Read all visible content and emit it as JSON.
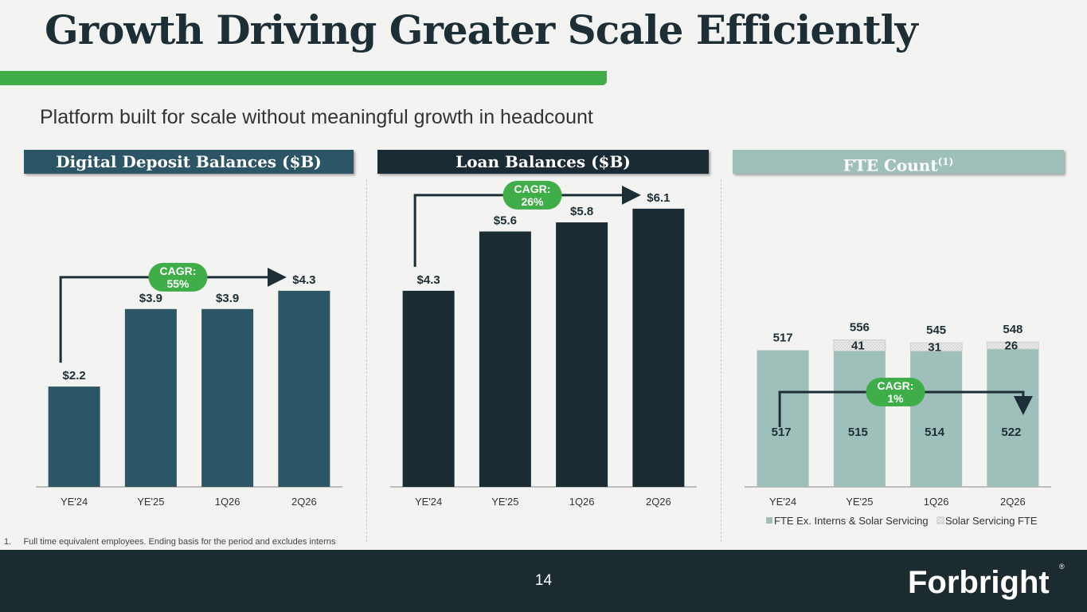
{
  "slide": {
    "title": "Growth Driving Greater Scale Efficiently",
    "subtitle": "Platform built for scale without meaningful growth in headcount",
    "footnote": "1.     Full time equivalent employees. Ending basis for the period and excludes interns",
    "page_number": "14",
    "logo_text": "Forbright",
    "logo_mark": "®"
  },
  "colors": {
    "green": "#3fae49",
    "deposit": "#2c5566",
    "loan": "#1b2b33",
    "fte": "#9fbfbb",
    "solar": "#e4e4e4"
  },
  "headers": [
    {
      "label": "Digital Deposit Balances ($B)",
      "sup": ""
    },
    {
      "label": "Loan Balances ($B)",
      "sup": ""
    },
    {
      "label": "FTE Count",
      "sup": "(1)"
    }
  ],
  "chart_data": [
    {
      "type": "bar",
      "title": "Digital Deposit Balances ($B)",
      "categories": [
        "YE'24",
        "YE'25",
        "1Q26",
        "2Q26"
      ],
      "values": [
        2.2,
        3.9,
        3.9,
        4.3
      ],
      "data_labels": [
        "$2.2",
        "$3.9",
        "$3.9",
        "$4.3"
      ],
      "annotation": {
        "line1": "CAGR:",
        "line2": "55%"
      },
      "ylim": [
        0,
        6.5
      ],
      "grid": false
    },
    {
      "type": "bar",
      "title": "Loan Balances ($B)",
      "categories": [
        "YE'24",
        "YE'25",
        "1Q26",
        "2Q26"
      ],
      "values": [
        4.3,
        5.6,
        5.8,
        6.1
      ],
      "data_labels": [
        "$4.3",
        "$5.6",
        "$5.8",
        "$6.1"
      ],
      "annotation": {
        "line1": "CAGR:",
        "line2": "26%"
      },
      "ylim": [
        0,
        6.5
      ],
      "grid": false
    },
    {
      "type": "bar",
      "stacked": true,
      "title": "FTE Count",
      "categories": [
        "YE'24",
        "YE'25",
        "1Q26",
        "2Q26"
      ],
      "series": [
        {
          "name": "FTE Ex. Interns & Solar Servicing",
          "values": [
            517,
            515,
            514,
            522
          ]
        },
        {
          "name": "Solar Servicing FTE",
          "values": [
            0,
            41,
            31,
            26
          ]
        }
      ],
      "totals": [
        517,
        556,
        545,
        548
      ],
      "annotation": {
        "line1": "CAGR:",
        "line2": "1%"
      },
      "legend": "bottom",
      "grid": false
    }
  ]
}
